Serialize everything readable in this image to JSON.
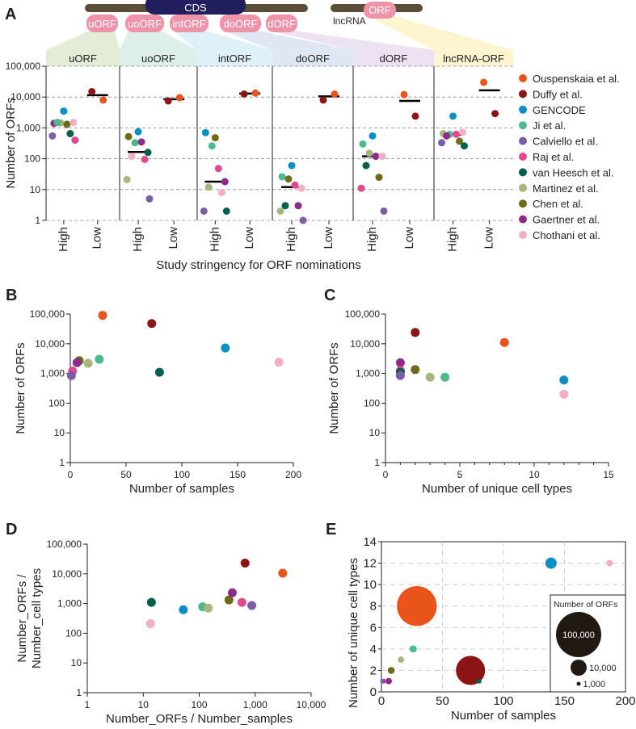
{
  "colors": {
    "Ouspenskaia et al.": "#e8541a",
    "Duffy et al.": "#8b1515",
    "GENCODE": "#0a8fc6",
    "Ji et al.": "#4cbb8a",
    "Calviello et al.": "#7b5ea7",
    "Raj et al.": "#e04891",
    "van Heesch et al.": "#045f4b",
    "Martinez et al.": "#a7b67c",
    "Chen et al.": "#6e6a1c",
    "Gaertner et al.": "#8e2a8a",
    "Chothani et al.": "#f3adc4"
  },
  "panel_labels": {
    "a": "A",
    "b": "B",
    "c": "C",
    "d": "D",
    "e": "E"
  },
  "diagram": {
    "cds": "CDS",
    "lncrna": "lncRNA",
    "orf": "ORF",
    "pills": [
      "uORF",
      "uoORF",
      "intORF",
      "doORF",
      "dORF"
    ],
    "pill_color": "#ee93a8",
    "cds_color": "#221f5e",
    "bar_color": "#5a4e38"
  },
  "legend": [
    "Ouspenskaia et al.",
    "Duffy et al.",
    "GENCODE",
    "Ji et al.",
    "Calviello et al.",
    "Raj et al.",
    "van Heesch et al.",
    "Martinez et al.",
    "Chen et al.",
    "Gaertner et al.",
    "Chothani et al."
  ],
  "chart_data": [
    {
      "id": "A",
      "type": "scatter",
      "ylabel": "Number of ORFs",
      "xlabel": "Study stringency for ORF nominations",
      "yscale": "log",
      "ylim": [
        1,
        100000
      ],
      "yticks": [
        1,
        10,
        100,
        1000,
        10000,
        100000
      ],
      "ytick_labels": [
        "1",
        "10",
        "100",
        "1,000",
        "10,000",
        "100,000"
      ],
      "grid": "horizontal dashed",
      "groups_labels": [
        "High",
        "Low"
      ],
      "categories": [
        {
          "name": "uORF",
          "color": "#e3edd6",
          "High": {
            "median": 1350,
            "points": [
              [
                "GENCODE",
                3500
              ],
              [
                "Gaertner et al.",
                1400
              ],
              [
                "Martinez et al.",
                1450
              ],
              [
                "Chen et al.",
                1300
              ],
              [
                "Chothani et al.",
                1500
              ],
              [
                "Ji et al.",
                1500
              ],
              [
                "van Heesch et al.",
                650
              ],
              [
                "Calviello et al.",
                550
              ],
              [
                "Raj et al.",
                400
              ]
            ]
          },
          "Low": {
            "median": 11500,
            "points": [
              [
                "Duffy et al.",
                15000
              ],
              [
                "Ouspenskaia et al.",
                8000
              ]
            ]
          }
        },
        {
          "name": "uoORF",
          "color": "#dcefe9",
          "High": {
            "median": 165,
            "points": [
              [
                "GENCODE",
                750
              ],
              [
                "Chen et al.",
                520
              ],
              [
                "Ji et al.",
                330
              ],
              [
                "Gaertner et al.",
                350
              ],
              [
                "van Heesch et al.",
                160
              ],
              [
                "Chothani et al.",
                120
              ],
              [
                "Raj et al.",
                95
              ],
              [
                "Martinez et al.",
                21
              ],
              [
                "Calviello et al.",
                5
              ]
            ]
          },
          "Low": {
            "median": 8500,
            "points": [
              [
                "Duffy et al.",
                7500
              ],
              [
                "Ouspenskaia et al.",
                9500
              ]
            ]
          }
        },
        {
          "name": "intORF",
          "color": "#def0f8",
          "High": {
            "median": 18,
            "points": [
              [
                "Chen et al.",
                480
              ],
              [
                "GENCODE",
                700
              ],
              [
                "Ji et al.",
                260
              ],
              [
                "Raj et al.",
                48
              ],
              [
                "Gaertner et al.",
                18
              ],
              [
                "Martinez et al.",
                12
              ],
              [
                "Chothani et al.",
                8
              ],
              [
                "Calviello et al.",
                2
              ],
              [
                "van Heesch et al.",
                2
              ]
            ]
          },
          "Low": {
            "median": 13000,
            "points": [
              [
                "Duffy et al.",
                12500
              ],
              [
                "Ouspenskaia et al.",
                13500
              ]
            ]
          }
        },
        {
          "name": "doORF",
          "color": "#dfe7f5",
          "High": {
            "median": 12,
            "points": [
              [
                "GENCODE",
                60
              ],
              [
                "Ji et al.",
                26
              ],
              [
                "Chen et al.",
                22
              ],
              [
                "Raj et al.",
                14
              ],
              [
                "Chothani et al.",
                11
              ],
              [
                "van Heesch et al.",
                3
              ],
              [
                "Gaertner et al.",
                3
              ],
              [
                "Martinez et al.",
                2
              ],
              [
                "Calviello et al.",
                1
              ]
            ]
          },
          "Low": {
            "median": 10500,
            "points": [
              [
                "Duffy et al.",
                8000
              ],
              [
                "Ouspenskaia et al.",
                12500
              ]
            ]
          }
        },
        {
          "name": "dORF",
          "color": "#ece2f1",
          "High": {
            "median": 120,
            "points": [
              [
                "GENCODE",
                550
              ],
              [
                "Ji et al.",
                300
              ],
              [
                "Martinez et al.",
                150
              ],
              [
                "Gaertner et al.",
                120
              ],
              [
                "Chothani et al.",
                120
              ],
              [
                "van Heesch et al.",
                60
              ],
              [
                "Chen et al.",
                25
              ],
              [
                "Raj et al.",
                11
              ],
              [
                "Calviello et al.",
                2
              ]
            ]
          },
          "Low": {
            "median": 7500,
            "points": [
              [
                "Ouspenskaia et al.",
                12000
              ],
              [
                "Duffy et al.",
                2400
              ]
            ]
          }
        },
        {
          "name": "lncRNA-ORF",
          "color": "#fdf5cf",
          "High": {
            "median": 600,
            "points": [
              [
                "GENCODE",
                2400
              ],
              [
                "Martinez et al.",
                650
              ],
              [
                "Ji et al.",
                620
              ],
              [
                "Raj et al.",
                620
              ],
              [
                "Chothani et al.",
                720
              ],
              [
                "Gaertner et al.",
                550
              ],
              [
                "Chen et al.",
                370
              ],
              [
                "Calviello et al.",
                330
              ],
              [
                "van Heesch et al.",
                260
              ]
            ]
          },
          "Low": {
            "median": 16500,
            "points": [
              [
                "Ouspenskaia et al.",
                30000
              ],
              [
                "Duffy et al.",
                2900
              ]
            ]
          }
        }
      ]
    },
    {
      "id": "B",
      "type": "scatter",
      "xlabel": "Number of samples",
      "ylabel": "Number of ORFs",
      "xlim": [
        0,
        200
      ],
      "xticks": [
        0,
        50,
        100,
        150,
        200
      ],
      "xtick_labels": [
        "0",
        "50",
        "100",
        "150",
        "200"
      ],
      "yscale": "log",
      "ylim": [
        1,
        100000
      ],
      "yticks": [
        1,
        10,
        100,
        1000,
        10000,
        100000
      ],
      "ytick_labels": [
        "1",
        "10",
        "100",
        "1,000",
        "10,000",
        "100,000"
      ],
      "points": [
        [
          "Ouspenskaia et al.",
          29,
          90000
        ],
        [
          "Duffy et al.",
          73,
          48000
        ],
        [
          "GENCODE",
          139,
          7200
        ],
        [
          "Chothani et al.",
          187,
          2400
        ],
        [
          "van Heesch et al.",
          80,
          1100
        ],
        [
          "Ji et al.",
          26,
          3000
        ],
        [
          "Martinez et al.",
          16,
          2200
        ],
        [
          "Chen et al.",
          8,
          2700
        ],
        [
          "Gaertner et al.",
          6,
          2300
        ],
        [
          "Raj et al.",
          2,
          1200
        ],
        [
          "Calviello et al.",
          1,
          850
        ]
      ]
    },
    {
      "id": "C",
      "type": "scatter",
      "xlabel": "Number of unique cell types",
      "ylabel": "Number of ORFs",
      "xlim": [
        0,
        15
      ],
      "xticks": [
        0,
        5,
        10,
        15
      ],
      "xtick_labels": [
        "0",
        "5",
        "10",
        "15"
      ],
      "yscale": "log",
      "ylim": [
        1,
        100000
      ],
      "yticks": [
        1,
        10,
        100,
        1000,
        10000,
        100000
      ],
      "ytick_labels": [
        "1",
        "10",
        "100",
        "1,000",
        "10,000",
        "100,000"
      ],
      "points": [
        [
          "Duffy et al.",
          2,
          24000
        ],
        [
          "Ouspenskaia et al.",
          8,
          11000
        ],
        [
          "Gaertner et al.",
          1,
          2300
        ],
        [
          "Chen et al.",
          2,
          1350
        ],
        [
          "Raj et al.",
          1,
          1250
        ],
        [
          "van Heesch et al.",
          1,
          1100
        ],
        [
          "Calviello et al.",
          1,
          850
        ],
        [
          "Martinez et al.",
          3,
          750
        ],
        [
          "Ji et al.",
          4,
          750
        ],
        [
          "GENCODE",
          12,
          600
        ],
        [
          "Chothani et al.",
          12,
          200
        ]
      ]
    },
    {
      "id": "D",
      "type": "scatter",
      "xlabel": "Number_ORFs / Number_samples",
      "ylabel": [
        "Number_ORFs /",
        "Number_cell types"
      ],
      "xscale": "log",
      "xlim": [
        1,
        10000
      ],
      "xticks": [
        1,
        10,
        100,
        1000,
        10000
      ],
      "xtick_labels": [
        "1",
        "10",
        "100",
        "1,000",
        "10,000"
      ],
      "yscale": "log",
      "ylim": [
        1,
        100000
      ],
      "yticks": [
        1,
        10,
        100,
        1000,
        10000,
        100000
      ],
      "ytick_labels": [
        "1",
        "10",
        "100",
        "1,000",
        "10,000",
        "100,000"
      ],
      "points": [
        [
          "van Heesch et al.",
          14,
          1100
        ],
        [
          "Chothani et al.",
          13.5,
          210
        ],
        [
          "GENCODE",
          52,
          620
        ],
        [
          "Ji et al.",
          115,
          780
        ],
        [
          "Martinez et al.",
          145,
          700
        ],
        [
          "Chen et al.",
          340,
          1320
        ],
        [
          "Gaertner et al.",
          390,
          2300
        ],
        [
          "Raj et al.",
          580,
          1100
        ],
        [
          "Calviello et al.",
          870,
          860
        ],
        [
          "Duffy et al.",
          660,
          23000
        ],
        [
          "Ouspenskaia et al.",
          3100,
          10500
        ]
      ]
    },
    {
      "id": "E",
      "type": "scatter",
      "xlabel": "Number of samples",
      "ylabel": "Number of unique cell types",
      "xlim": [
        0,
        200
      ],
      "xticks": [
        0,
        50,
        100,
        150,
        200
      ],
      "xtick_labels": [
        "0",
        "50",
        "100",
        "150",
        "200"
      ],
      "ylim": [
        0,
        14
      ],
      "yticks": [
        0,
        2,
        4,
        6,
        8,
        10,
        12,
        14
      ],
      "ytick_labels": [
        "0",
        "2",
        "4",
        "6",
        "8",
        "10",
        "12",
        "14"
      ],
      "grid": "dashed",
      "size_legend_title": "Number of ORFs",
      "size_legend": [
        [
          100000,
          "100,000"
        ],
        [
          10000,
          "10,000"
        ],
        [
          1000,
          "1,000"
        ]
      ],
      "points": [
        [
          "Ouspenskaia et al.",
          29,
          8,
          90000
        ],
        [
          "Duffy et al.",
          73,
          2,
          48000
        ],
        [
          "GENCODE",
          139,
          12,
          7200
        ],
        [
          "Chothani et al.",
          187,
          12,
          2400
        ],
        [
          "Ji et al.",
          26,
          4,
          3000
        ],
        [
          "Martinez et al.",
          16,
          3,
          2200
        ],
        [
          "Chen et al.",
          8,
          2,
          2700
        ],
        [
          "Gaertner et al.",
          6,
          1,
          2300
        ],
        [
          "Raj et al.",
          2,
          1,
          1200
        ],
        [
          "Calviello et al.",
          1,
          1,
          850
        ],
        [
          "van Heesch et al.",
          80,
          1,
          1100
        ]
      ]
    }
  ]
}
